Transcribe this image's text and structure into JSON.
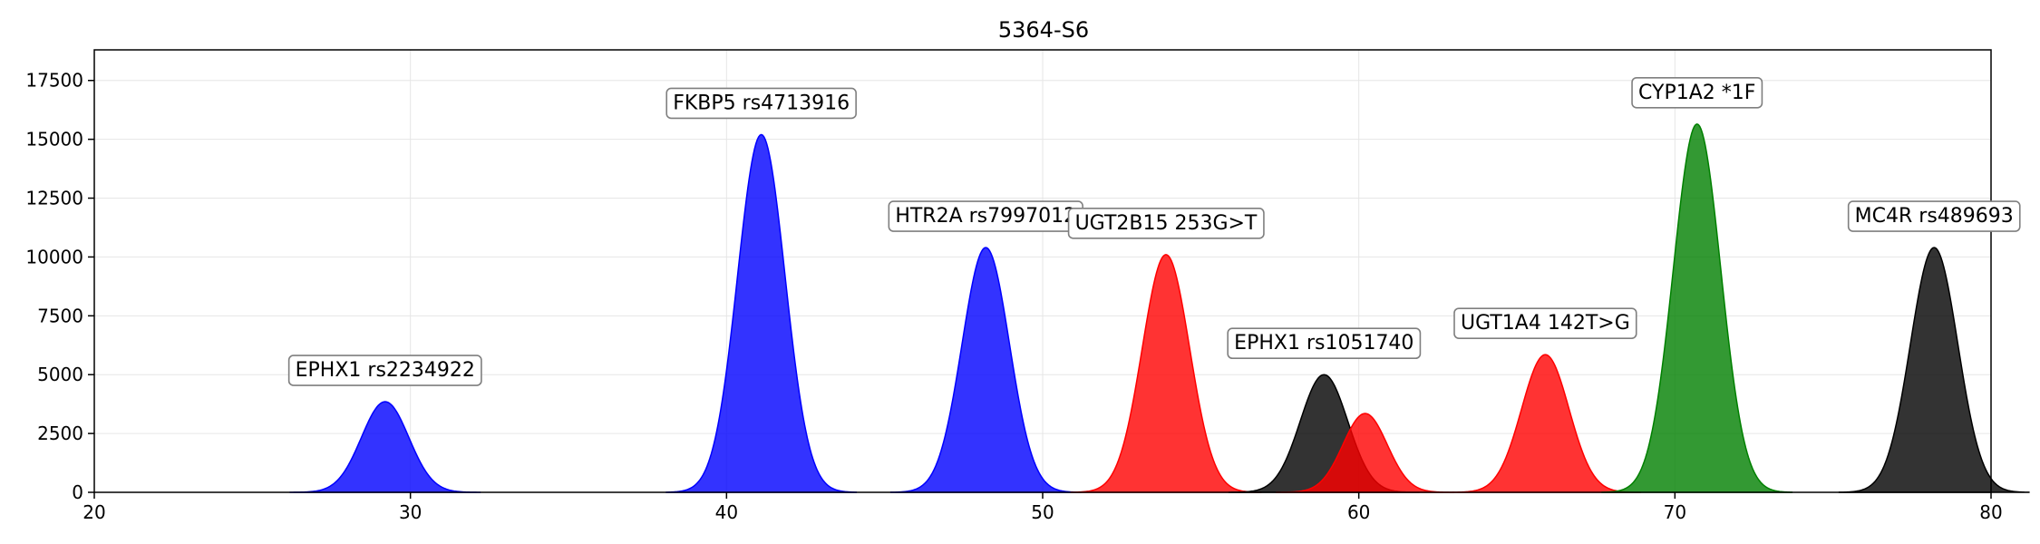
{
  "chart_data": {
    "type": "area",
    "title": "5364-S6",
    "xlabel": "",
    "ylabel": "",
    "xlim": [
      20,
      80
    ],
    "ylim": [
      0,
      18800
    ],
    "xticks": [
      20,
      30,
      40,
      50,
      60,
      70,
      80
    ],
    "yticks": [
      0,
      2500,
      5000,
      7500,
      10000,
      12500,
      15000,
      17500
    ],
    "grid": true,
    "peaks": [
      {
        "label": "EPHX1 rs2234922",
        "center": 29.2,
        "height": 3850,
        "width": 0.75,
        "color": "#0000ff"
      },
      {
        "label": "FKBP5 rs4713916",
        "center": 41.1,
        "height": 15200,
        "width": 0.75,
        "color": "#0000ff"
      },
      {
        "label": "HTR2A rs7997012",
        "center": 48.2,
        "height": 10400,
        "width": 0.75,
        "color": "#0000ff"
      },
      {
        "label": "UGT2B15 253G>T",
        "center": 53.9,
        "height": 10100,
        "width": 0.75,
        "color": "#ff0000"
      },
      {
        "label": "EPHX1 rs1051740",
        "center": 58.9,
        "height": 5000,
        "width": 0.75,
        "color": "#000000"
      },
      {
        "label": "",
        "center": 60.2,
        "height": 3350,
        "width": 0.7,
        "color": "#ff0000"
      },
      {
        "label": "UGT1A4 142T>G",
        "center": 65.9,
        "height": 5850,
        "width": 0.75,
        "color": "#ff0000"
      },
      {
        "label": "CYP1A2 *1F",
        "center": 70.7,
        "height": 15650,
        "width": 0.75,
        "color": "#008000"
      },
      {
        "label": "MC4R rs489693",
        "center": 78.2,
        "height": 10400,
        "width": 0.75,
        "color": "#000000"
      }
    ]
  }
}
